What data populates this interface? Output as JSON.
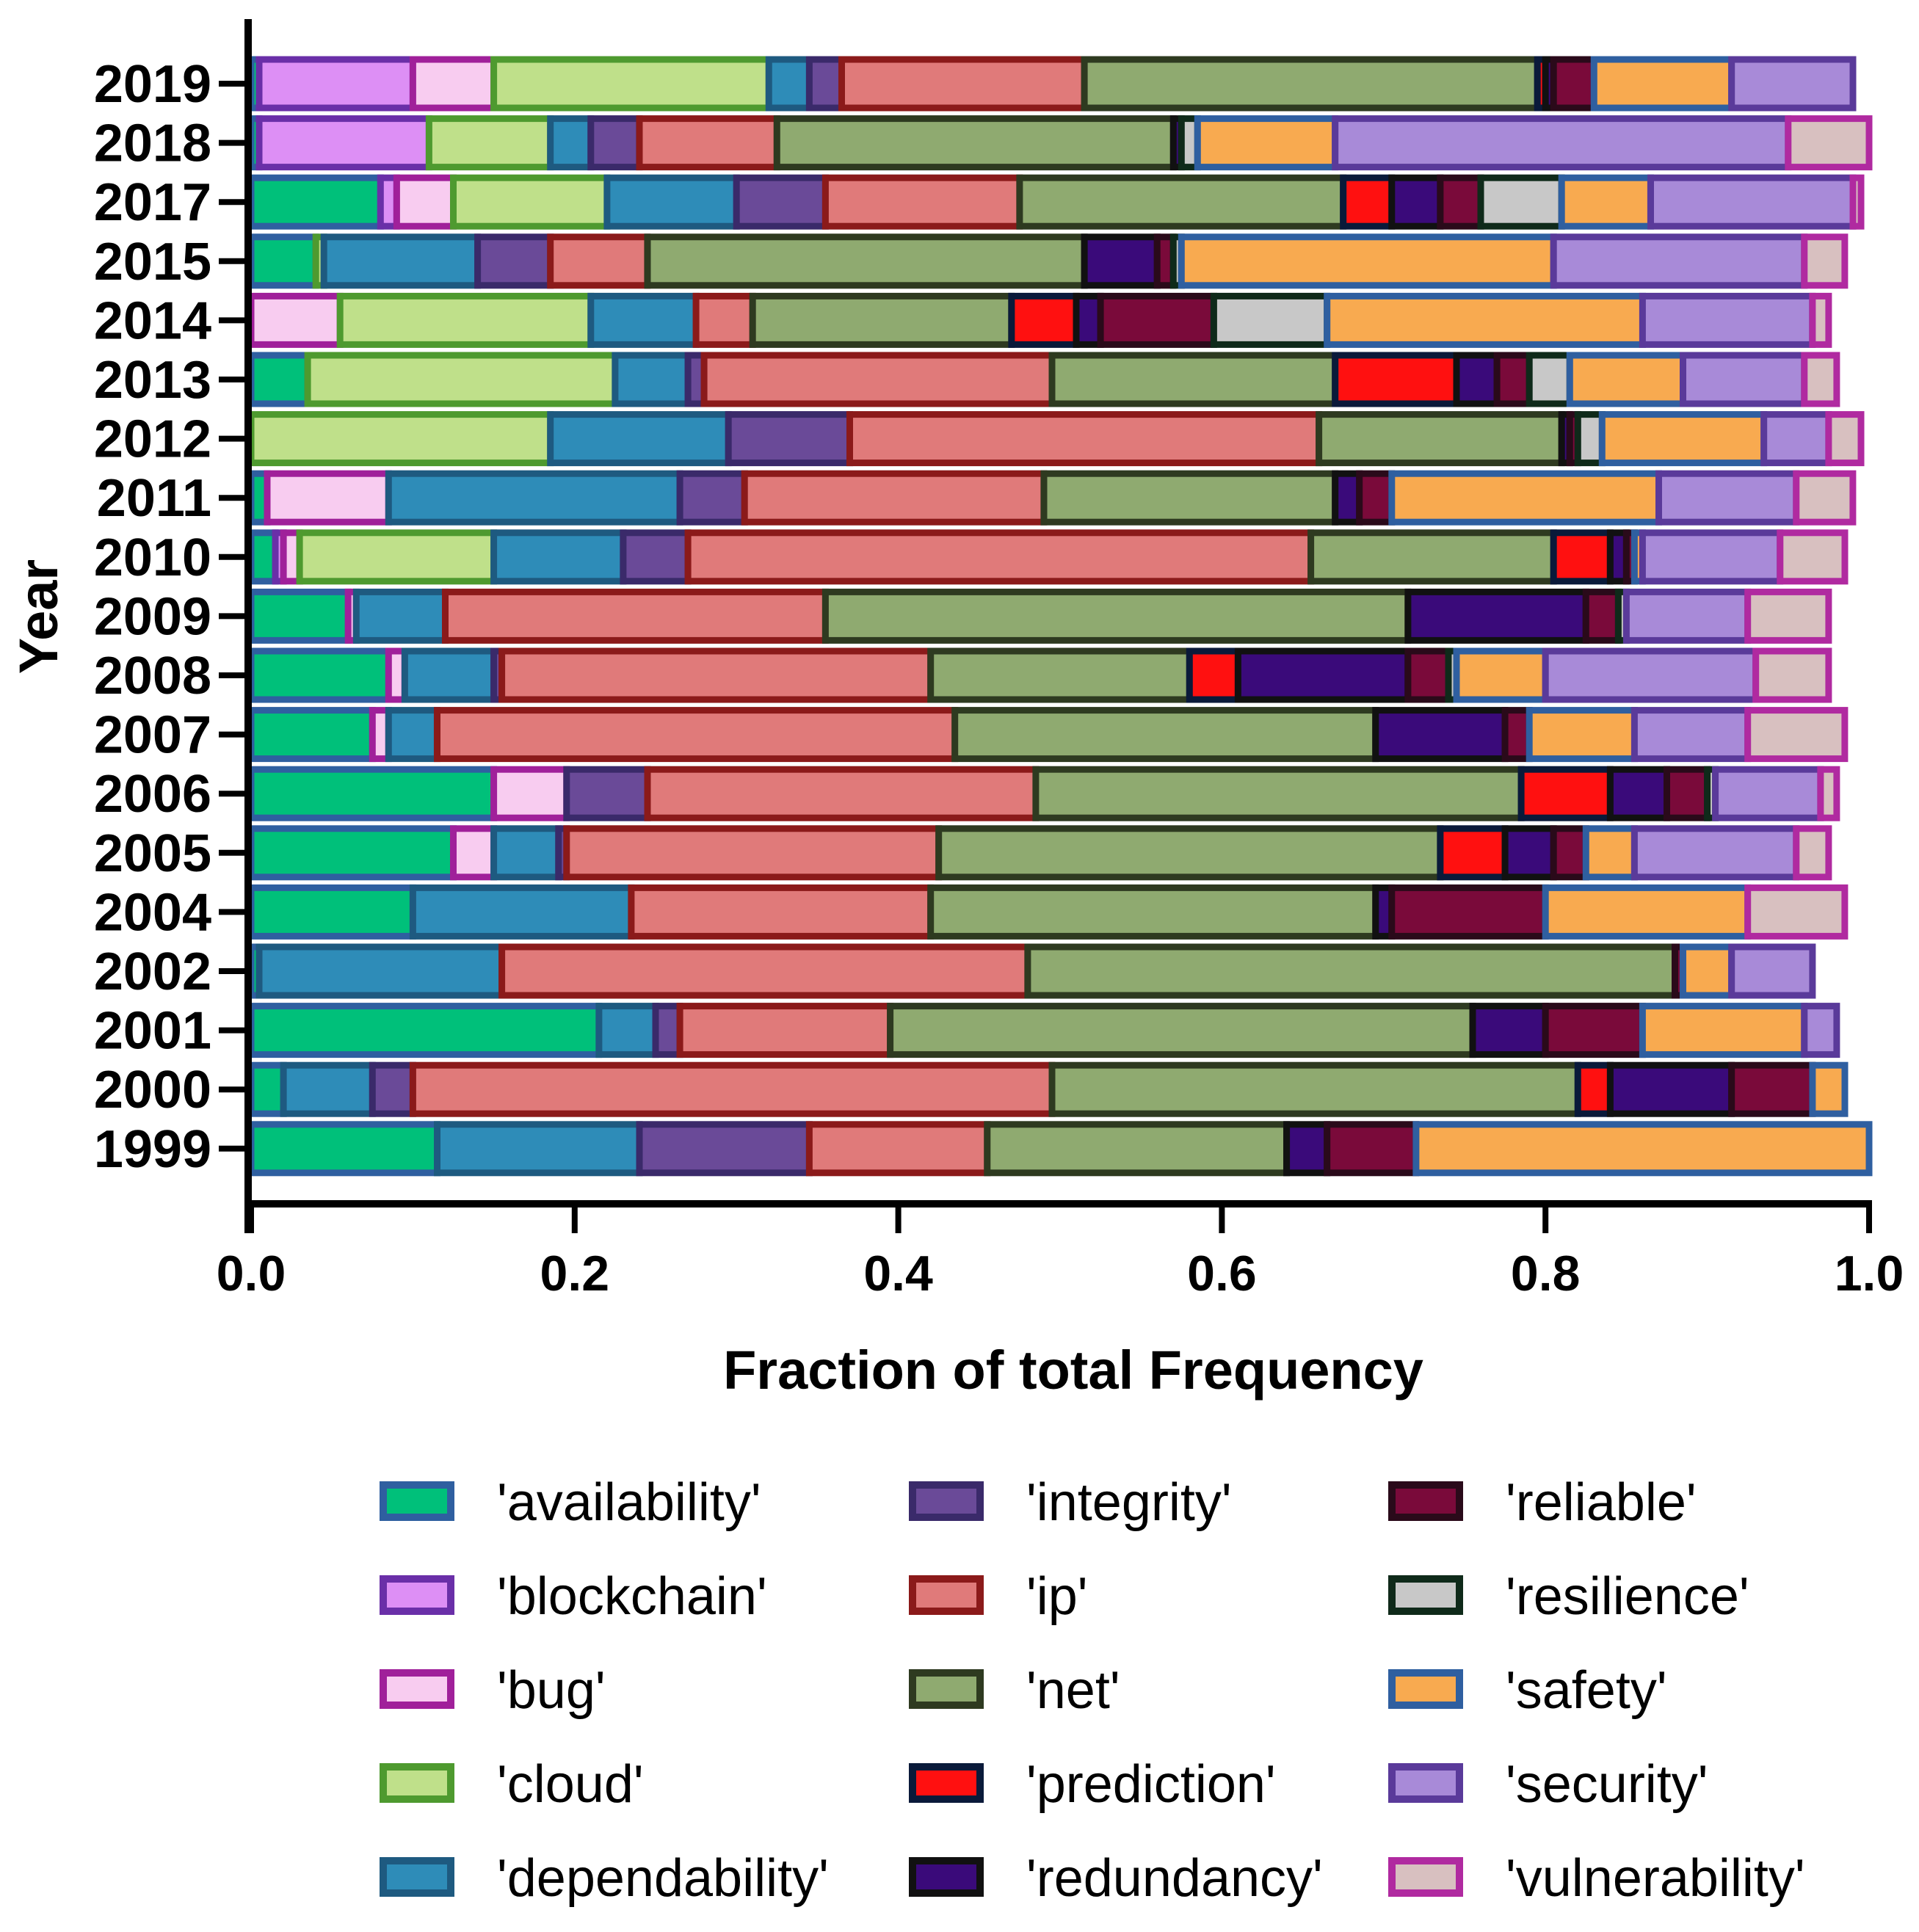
{
  "chart_data": {
    "type": "bar",
    "orientation": "horizontal",
    "stacked": true,
    "normalized": true,
    "title": "",
    "xlabel": "Fraction of total Frequency",
    "ylabel": "Year",
    "xlim": [
      0,
      1
    ],
    "xticks": [
      "0.0",
      "0.2",
      "0.4",
      "0.6",
      "0.8",
      "1.0"
    ],
    "grid": false,
    "legend_position": "bottom",
    "categories": [
      "2019",
      "2018",
      "2017",
      "2015",
      "2014",
      "2013",
      "2012",
      "2011",
      "2010",
      "2009",
      "2008",
      "2007",
      "2006",
      "2005",
      "2004",
      "2002",
      "2001",
      "2000",
      "1999"
    ],
    "series": [
      {
        "name": "'availability'",
        "fill": "#00C07A",
        "edge": "#2F5FA0",
        "values": [
          0.005,
          0.005,
          0.08,
          0.04,
          0,
          0.035,
          0,
          0.01,
          0.015,
          0.06,
          0.085,
          0.075,
          0.15,
          0.125,
          0.1,
          0.005,
          0.215,
          0.02,
          0.115
        ]
      },
      {
        "name": "'blockchain'",
        "fill": "#DD8FF5",
        "edge": "#6A2FA8",
        "values": [
          0.095,
          0.105,
          0.01,
          0,
          0,
          0,
          0,
          0,
          0.005,
          0,
          0,
          0,
          0,
          0,
          0,
          0,
          0,
          0,
          0
        ]
      },
      {
        "name": "'bug'",
        "fill": "#F8CCF0",
        "edge": "#A0209A",
        "values": [
          0.05,
          0,
          0.035,
          0,
          0.055,
          0,
          0,
          0.075,
          0.01,
          0.005,
          0.01,
          0.01,
          0.045,
          0.025,
          0,
          0,
          0,
          0,
          0
        ]
      },
      {
        "name": "'cloud'",
        "fill": "#BFE08A",
        "edge": "#4E9A2F",
        "values": [
          0.17,
          0.075,
          0.095,
          0.005,
          0.155,
          0.19,
          0.185,
          0,
          0.12,
          0,
          0,
          0,
          0,
          0,
          0,
          0,
          0,
          0,
          0
        ]
      },
      {
        "name": "'dependability'",
        "fill": "#2E8CB8",
        "edge": "#1E5A80",
        "values": [
          0.025,
          0.025,
          0.08,
          0.095,
          0.065,
          0.045,
          0.11,
          0.18,
          0.08,
          0.055,
          0.055,
          0.03,
          0,
          0.04,
          0.135,
          0.15,
          0.035,
          0.055,
          0.125
        ]
      },
      {
        "name": "'integrity'",
        "fill": "#6A4A98",
        "edge": "#3A2A6A",
        "values": [
          0.02,
          0.03,
          0.055,
          0.045,
          0,
          0.01,
          0.075,
          0.04,
          0.04,
          0,
          0.005,
          0,
          0.05,
          0.005,
          0,
          0,
          0.015,
          0.025,
          0.105
        ]
      },
      {
        "name": "'ip'",
        "fill": "#E07A7A",
        "edge": "#8B1A1A",
        "values": [
          0.15,
          0.085,
          0.12,
          0.06,
          0.035,
          0.215,
          0.29,
          0.185,
          0.385,
          0.235,
          0.265,
          0.32,
          0.24,
          0.23,
          0.185,
          0.325,
          0.13,
          0.395,
          0.11
        ]
      },
      {
        "name": "'net'",
        "fill": "#8FAA70",
        "edge": "#2E3A20",
        "values": [
          0.28,
          0.245,
          0.2,
          0.27,
          0.16,
          0.175,
          0.15,
          0.18,
          0.15,
          0.36,
          0.16,
          0.26,
          0.3,
          0.31,
          0.275,
          0.4,
          0.36,
          0.325,
          0.185
        ]
      },
      {
        "name": "'prediction'",
        "fill": "#FF1010",
        "edge": "#0A1A3A",
        "values": [
          0.005,
          0,
          0.03,
          0,
          0.04,
          0.075,
          0,
          0,
          0.035,
          0,
          0.03,
          0,
          0.055,
          0.04,
          0,
          0,
          0,
          0.02,
          0
        ]
      },
      {
        "name": "'redundancy'",
        "fill": "#3A0A7A",
        "edge": "#111111",
        "values": [
          0.005,
          0.005,
          0.03,
          0.045,
          0.015,
          0.025,
          0.005,
          0.015,
          0.01,
          0.11,
          0.105,
          0.08,
          0.035,
          0.03,
          0.01,
          0,
          0.045,
          0.075,
          0.025
        ]
      },
      {
        "name": "'reliable'",
        "fill": "#7A0A3A",
        "edge": "#2A0A1A",
        "values": [
          0.025,
          0,
          0.025,
          0.01,
          0.07,
          0.02,
          0.005,
          0.02,
          0.005,
          0.02,
          0.025,
          0.015,
          0.025,
          0.02,
          0.095,
          0.005,
          0.06,
          0.05,
          0.055
        ]
      },
      {
        "name": "'resilience'",
        "fill": "#C8C8C8",
        "edge": "#0F2A1A",
        "values": [
          0,
          0.01,
          0.05,
          0.005,
          0.07,
          0.025,
          0.015,
          0,
          0,
          0.005,
          0.005,
          0,
          0.005,
          0,
          0,
          0,
          0,
          0,
          0
        ]
      },
      {
        "name": "'safety'",
        "fill": "#F8AA50",
        "edge": "#2F5FA0",
        "values": [
          0.085,
          0.085,
          0.055,
          0.23,
          0.195,
          0.07,
          0.1,
          0.165,
          0.005,
          0,
          0.055,
          0.065,
          0,
          0.03,
          0.125,
          0.03,
          0.1,
          0.02,
          0.28
        ]
      },
      {
        "name": "'security'",
        "fill": "#A88AD8",
        "edge": "#5A3A9A",
        "values": [
          0.075,
          0.28,
          0.125,
          0.155,
          0.105,
          0.075,
          0.04,
          0.085,
          0.085,
          0.075,
          0.13,
          0.07,
          0.065,
          0.1,
          0,
          0.05,
          0.02,
          0,
          0
        ]
      },
      {
        "name": "'vulnerability'",
        "fill": "#D8C0C0",
        "edge": "#B02AA0",
        "values": [
          0,
          0.05,
          0.005,
          0.025,
          0.01,
          0.02,
          0.02,
          0.035,
          0.04,
          0.05,
          0.045,
          0.06,
          0.01,
          0.02,
          0.06,
          0,
          0,
          0,
          0
        ]
      }
    ]
  }
}
